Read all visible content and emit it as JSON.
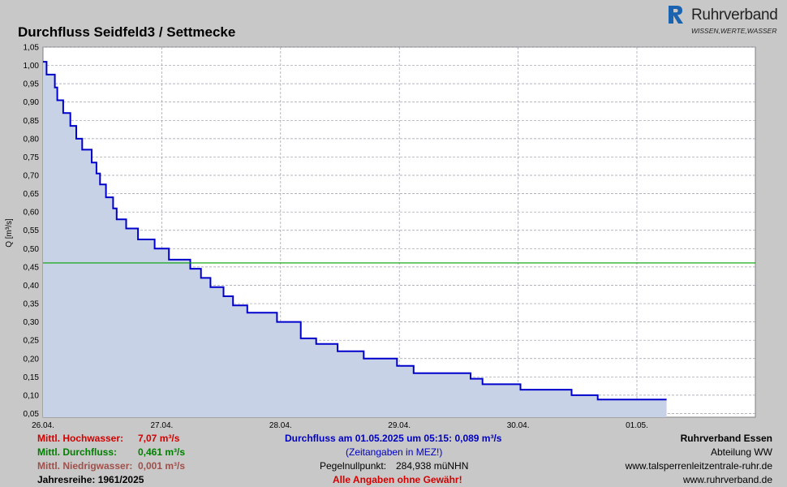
{
  "chart_data": {
    "type": "area",
    "title": "Durchfluss Seidfeld3 / Settmecke",
    "ylabel": "Q [m³/s]",
    "xlabel": "",
    "ylim": [
      0.04,
      1.05
    ],
    "xlim": [
      0,
      6.0
    ],
    "grid": true,
    "x_tick_labels": [
      "26.04.",
      "27.04.",
      "28.04.",
      "29.04.",
      "30.04.",
      "01.05."
    ],
    "y_tick_labels": [
      "0,05",
      "0,10",
      "0,15",
      "0,20",
      "0,25",
      "0,30",
      "0,35",
      "0,40",
      "0,45",
      "0,50",
      "0,55",
      "0,60",
      "0,65",
      "0,70",
      "0,75",
      "0,80",
      "0,85",
      "0,90",
      "0,95",
      "1,00",
      "1,05"
    ],
    "mean_flow_line": 0.461,
    "series": [
      {
        "values_x_days_from_start": [
          0.0,
          0.03,
          0.03,
          0.1,
          0.1,
          0.12,
          0.12,
          0.17,
          0.17,
          0.23,
          0.23,
          0.28,
          0.28,
          0.33,
          0.33,
          0.41,
          0.41,
          0.45,
          0.45,
          0.48,
          0.48,
          0.53,
          0.53,
          0.59,
          0.59,
          0.62,
          0.62,
          0.7,
          0.7,
          0.8,
          0.8,
          0.94,
          0.94,
          1.06,
          1.06,
          1.24,
          1.24,
          1.33,
          1.33,
          1.41,
          1.41,
          1.52,
          1.52,
          1.6,
          1.6,
          1.72,
          1.72,
          1.97,
          1.97,
          2.17,
          2.17,
          2.3,
          2.3,
          2.32,
          2.32,
          2.34,
          2.34,
          2.48,
          2.48,
          2.7,
          2.7,
          2.98,
          2.98,
          3.12,
          3.12,
          3.6,
          3.6,
          3.7,
          3.7,
          4.02,
          4.02,
          4.45,
          4.45,
          4.67,
          4.67,
          5.25
        ],
        "values_y": [
          1.01,
          1.01,
          0.975,
          0.975,
          0.94,
          0.94,
          0.905,
          0.905,
          0.87,
          0.87,
          0.835,
          0.835,
          0.8,
          0.8,
          0.77,
          0.77,
          0.735,
          0.735,
          0.705,
          0.705,
          0.675,
          0.675,
          0.64,
          0.64,
          0.61,
          0.61,
          0.58,
          0.58,
          0.555,
          0.555,
          0.525,
          0.525,
          0.5,
          0.5,
          0.47,
          0.47,
          0.445,
          0.445,
          0.42,
          0.42,
          0.395,
          0.395,
          0.37,
          0.37,
          0.345,
          0.345,
          0.325,
          0.325,
          0.3,
          0.3,
          0.255,
          0.255,
          0.24,
          0.24,
          0.24,
          0.24,
          0.24,
          0.24,
          0.22,
          0.22,
          0.2,
          0.2,
          0.18,
          0.18,
          0.16,
          0.16,
          0.145,
          0.145,
          0.13,
          0.13,
          0.115,
          0.115,
          0.1,
          0.1,
          0.088,
          0.088
        ]
      }
    ]
  },
  "logo": {
    "brand": "Ruhrverband",
    "tagline": "WISSEN,WERTE,WASSER"
  },
  "footer": {
    "hochwasser_label": "Mittl. Hochwasser:",
    "hochwasser_value": "7,07 m³/s",
    "durchfluss_label": "Mittl. Durchfluss:",
    "durchfluss_value": "0,461 m³/s",
    "niedrigwasser_label": "Mittl. Niedrigwasser:",
    "niedrigwasser_value": "0,001 m³/s",
    "jahresreihe": "Jahresreihe: 1961/2025",
    "current": "Durchfluss am 01.05.2025 um 05:15: 0,089 m³/s",
    "timezone": "(Zeitangaben in MEZ!)",
    "pegel_label": "Pegelnullpunkt:",
    "pegel_value": "284,938 müNHN",
    "disclaimer": "Alle Angaben ohne Gewähr!",
    "org": "Ruhrverband Essen",
    "dept": "Abteilung WW",
    "url1": "www.talsperrenleitzentrale-ruhr.de",
    "url2": "www.ruhrverband.de"
  },
  "colors": {
    "line": "#0000cc",
    "fill": "#c8d2e6",
    "mean": "#00a000",
    "grid": "#9a9aaa"
  }
}
